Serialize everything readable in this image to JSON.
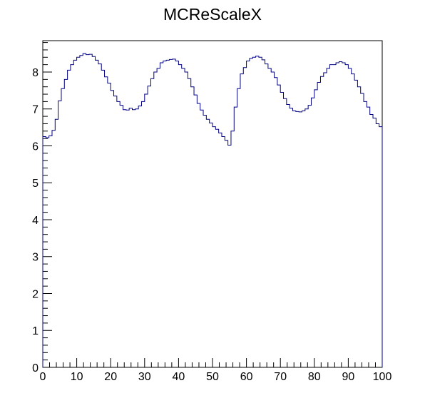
{
  "chart_data": {
    "type": "histogram",
    "title": "MCReScaleX",
    "xlabel": "",
    "ylabel": "",
    "xlim": [
      0,
      100
    ],
    "ylim": [
      0,
      8.85
    ],
    "x_ticks": [
      "0",
      "10",
      "20",
      "30",
      "40",
      "50",
      "60",
      "70",
      "80",
      "90",
      "100"
    ],
    "y_ticks": [
      "0",
      "1",
      "2",
      "3",
      "4",
      "5",
      "6",
      "7",
      "8"
    ],
    "grid": false,
    "legend": "none",
    "line_color": "#000080",
    "bin_width": 1,
    "values": [
      6.25,
      6.22,
      6.27,
      6.42,
      6.72,
      7.22,
      7.55,
      7.8,
      8.05,
      8.2,
      8.32,
      8.4,
      8.45,
      8.5,
      8.47,
      8.48,
      8.42,
      8.32,
      8.22,
      8.05,
      7.87,
      7.7,
      7.5,
      7.35,
      7.2,
      7.1,
      6.98,
      6.97,
      7.02,
      6.98,
      7.0,
      7.08,
      7.2,
      7.4,
      7.62,
      7.82,
      8.0,
      8.1,
      8.25,
      8.3,
      8.32,
      8.34,
      8.35,
      8.3,
      8.2,
      8.1,
      8.0,
      7.82,
      7.6,
      7.38,
      7.15,
      6.97,
      6.83,
      6.72,
      6.62,
      6.52,
      6.45,
      6.35,
      6.25,
      6.15,
      6.02,
      6.4,
      7.05,
      7.55,
      7.95,
      8.12,
      8.3,
      8.37,
      8.4,
      8.43,
      8.4,
      8.33,
      8.22,
      8.1,
      8.0,
      7.85,
      7.65,
      7.45,
      7.28,
      7.12,
      7.02,
      6.95,
      6.93,
      6.92,
      6.95,
      7.0,
      7.1,
      7.3,
      7.52,
      7.72,
      7.88,
      7.98,
      8.1,
      8.2,
      8.2,
      8.25,
      8.28,
      8.25,
      8.2,
      8.1,
      7.95,
      7.78,
      7.6,
      7.42,
      7.2,
      7.05,
      6.85,
      6.75,
      6.6,
      6.52
    ],
    "last_bin_value": 6.52
  }
}
